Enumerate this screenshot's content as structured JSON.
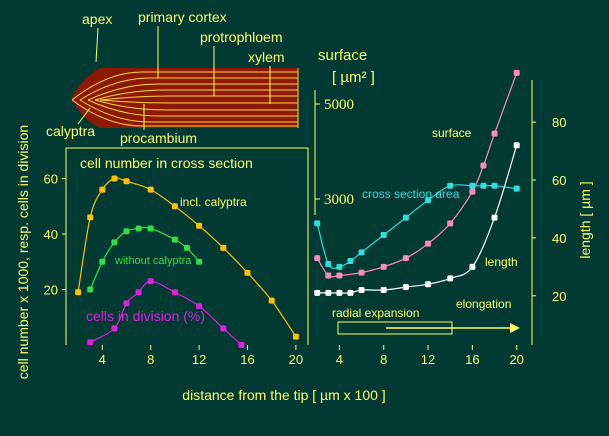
{
  "colors": {
    "background": "#003a33",
    "axis": "#ffff66",
    "label": "#ffff66",
    "root_fill": "#8b1a00",
    "root_lines": "#ffd24a",
    "incl_calyptra": "#ffc000",
    "without_calyptra": "#33dd44",
    "cells_in_division": "#dd22dd",
    "surface": "#ff88bb",
    "length": "#ffffff",
    "cross_section": "#33dddd",
    "arrow": "#ffff66"
  },
  "anatomy": {
    "apex": "apex",
    "primary_cortex": "primary cortex",
    "protrophloem": "protrophloem",
    "xylem": "xylem",
    "calyptra": "calyptra",
    "procambium": "procambium"
  },
  "texts": {
    "y_left_label": "cell number x 1000, resp. cells in division",
    "x_label": "distance from the tip [ µm x 100 ]",
    "y_right_label": "length [ µm ]",
    "surface_unit_label": "surface",
    "surface_unit": "[ µm² ]",
    "left_panel_title": "cell number in cross section",
    "label_incl_calyptra": "incl. calyptra",
    "label_without_calyptra": "without calyptra",
    "label_cells_in_division": "cells in division (%)",
    "label_surface": "surface",
    "label_cross_section": "cross section area",
    "label_length": "length",
    "label_radial": "radial expansion",
    "label_elongation": "elongation"
  },
  "chart_data": [
    {
      "type": "line",
      "panel": "left",
      "title": "cell number in cross section",
      "ylabel": "cell number x 1000, resp. cells in division",
      "xlabel": "distance from the tip [ µm x 100 ]",
      "xlim": [
        1,
        21
      ],
      "ylim": [
        0,
        71
      ],
      "xticks": [
        4,
        8,
        12,
        16,
        20
      ],
      "yticks": [
        20,
        40,
        60
      ],
      "series": [
        {
          "name": "incl. calyptra",
          "color_key": "incl_calyptra",
          "x": [
            2,
            3,
            4,
            5,
            6,
            8,
            10,
            12,
            14,
            16,
            18,
            20
          ],
          "y": [
            19,
            46,
            56,
            60,
            59,
            56,
            50,
            43,
            35,
            26,
            16,
            3
          ]
        },
        {
          "name": "without calyptra",
          "color_key": "without_calyptra",
          "x": [
            3,
            4,
            5,
            6,
            7,
            8,
            10,
            11,
            12
          ],
          "y": [
            20,
            30,
            37,
            41,
            42,
            42,
            38,
            35,
            30
          ]
        },
        {
          "name": "cells in division (%)",
          "color_key": "cells_in_division",
          "x": [
            3,
            5,
            6,
            7,
            8,
            10,
            12,
            14,
            15.5
          ],
          "y": [
            1,
            6,
            15,
            19,
            23,
            19,
            14,
            6,
            0
          ]
        }
      ]
    },
    {
      "type": "line",
      "panel": "right",
      "ylabel": "length [ µm ]",
      "xlabel": "distance from the tip [ µm x 100 ]",
      "xlim": [
        1.8,
        21.2
      ],
      "ylim": [
        3,
        98
      ],
      "xticks": [
        4,
        8,
        12,
        16,
        20
      ],
      "yticks": [
        20,
        40,
        60,
        80
      ],
      "surface_ticks": [
        3000,
        5000
      ],
      "series": [
        {
          "name": "surface",
          "color_key": "surface",
          "x": [
            2,
            3,
            4,
            6,
            8,
            10,
            12,
            14,
            16,
            17,
            18,
            20
          ],
          "y": [
            33,
            27,
            27,
            28,
            30,
            33,
            38,
            45,
            56,
            65,
            76,
            97
          ]
        },
        {
          "name": "cross section area",
          "color_key": "cross_section",
          "x": [
            2,
            3,
            4,
            5,
            6,
            8,
            10,
            12,
            14,
            16,
            17,
            18,
            20
          ],
          "y": [
            45,
            31,
            30,
            32,
            35,
            41,
            47,
            53,
            58,
            58,
            58,
            58,
            57
          ]
        },
        {
          "name": "length",
          "color_key": "length",
          "x": [
            2,
            3,
            4,
            5,
            6,
            8,
            10,
            12,
            14,
            16,
            18,
            20
          ],
          "y": [
            21,
            21,
            21,
            21,
            22,
            22,
            23,
            24,
            26,
            30,
            47,
            72
          ]
        }
      ]
    }
  ]
}
